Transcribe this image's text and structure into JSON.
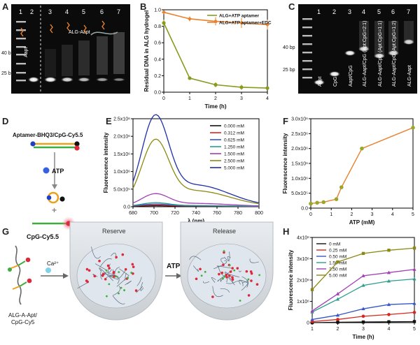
{
  "panel_A": {
    "label": "A",
    "lanes": [
      "1",
      "2",
      "3",
      "4",
      "5",
      "6",
      "7"
    ],
    "marker_40": "40 bp",
    "marker_25": "25 bp",
    "aapt_label": "Aapt",
    "alg_label": "ALG-Aapt"
  },
  "panel_C": {
    "label": "C",
    "lanes": [
      "1",
      "2",
      "3",
      "4",
      "5",
      "6",
      "7"
    ],
    "marker_40": "40 bp",
    "marker_25": "25 bp",
    "lane_labels": [
      "Aapt",
      "CpG",
      "Aapt/CpG",
      "ALG-Aapt/CpG (Apt:CpG=2:1)",
      "ALG-Aapt/CpG (Apt:CpG=1:1)",
      "ALG-Aapt/CpG (Apt:CpG=1:2)",
      "ALG-Aapt"
    ]
  },
  "panel_D": {
    "label": "D",
    "top_text": "Aptamer-BHQ3/CpG-Cy5.5",
    "atp_text": "ATP",
    "plus_text": "+",
    "bottom_text": "CpG-Cy5.5"
  },
  "panel_G": {
    "label": "G",
    "mol_text_1": "ALG-A-Apt/",
    "mol_text_2": "CpG-Cy5",
    "ca_text": "Ca²⁺",
    "reserve_text": "Reserve",
    "atp_text": "ATP",
    "release_text": "Release"
  },
  "chart_data": [
    {
      "id": "B",
      "type": "line",
      "xlabel": "Time (h)",
      "ylabel": "Residual DNA in ALG hydrogel",
      "xlim": [
        0,
        4
      ],
      "ylim": [
        0,
        1.0
      ],
      "xticks": [
        "0",
        "1",
        "2",
        "3",
        "4"
      ],
      "yticks": [
        "0.0",
        "0.2",
        "0.4",
        "0.6",
        "0.8",
        "1.0"
      ],
      "legend_position": "top-right",
      "series": [
        {
          "name": "ALG+ATP aptamer",
          "color": "#8a9a1c",
          "x": [
            0,
            1,
            2,
            3,
            4
          ],
          "values": [
            0.84,
            0.17,
            0.09,
            0.06,
            0.05
          ],
          "err": [
            0.04,
            0.01,
            0.03,
            0.03,
            0.02
          ]
        },
        {
          "name": "ALG+ATP aptamer+EDC",
          "color": "#e8822e",
          "x": [
            0,
            1,
            2,
            3,
            4
          ],
          "values": [
            0.97,
            0.89,
            0.86,
            0.84,
            0.82
          ],
          "err": [
            0.02,
            0.03,
            0.05,
            0.06,
            0.06
          ]
        }
      ]
    },
    {
      "id": "E",
      "type": "line",
      "xlabel": "λ (nm)",
      "ylabel": "Fluorescence intensity",
      "xlim": [
        680,
        800
      ],
      "ylim": [
        0,
        2500000.0
      ],
      "xticks": [
        "680",
        "700",
        "720",
        "740",
        "760",
        "780",
        "800"
      ],
      "yticks": [
        "0.0",
        "5.0x10⁵",
        "1.0x10⁶",
        "1.5x10⁶",
        "2.0x10⁶",
        "2.5x10⁶"
      ],
      "legend_position": "top-right",
      "series": [
        {
          "name": "0.000 mM",
          "color": "#111111",
          "peak": 20000.0
        },
        {
          "name": "0.312 mM",
          "color": "#d9261c",
          "peak": 40000.0
        },
        {
          "name": "0.625 mM",
          "color": "#3557c9",
          "peak": 70000.0
        },
        {
          "name": "1.250 mM",
          "color": "#2a9e8e",
          "peak": 110000.0
        },
        {
          "name": "1.500 mM",
          "color": "#a23fb5",
          "peak": 380000.0
        },
        {
          "name": "2.500 mM",
          "color": "#8a8a12",
          "peak": 2000000.0
        },
        {
          "name": "5.000 mM",
          "color": "#1e2fa8",
          "peak": 2730000.0
        }
      ]
    },
    {
      "id": "F",
      "type": "line",
      "xlabel": "ATP (mM)",
      "ylabel": "Fluorescence intensity",
      "xlim": [
        0,
        5
      ],
      "ylim": [
        0,
        3000000.0
      ],
      "xticks": [
        "0",
        "1",
        "2",
        "3",
        "4",
        "5"
      ],
      "yticks": [
        "0.0",
        "5.0x10⁵",
        "1.0x10⁶",
        "1.5x10⁶",
        "2.0x10⁶",
        "2.5x10⁶",
        "3.0x10⁶"
      ],
      "series": [
        {
          "name": "",
          "color": "#e8822e",
          "marker_color": "#9aa82a",
          "x": [
            0,
            0.312,
            0.625,
            1.25,
            1.5,
            2.5,
            5
          ],
          "values": [
            150000.0,
            180000.0,
            200000.0,
            300000.0,
            700000.0,
            2000000.0,
            2700000.0
          ]
        }
      ]
    },
    {
      "id": "H",
      "type": "line",
      "xlabel": "Time (h)",
      "ylabel": "Fluorescence intensity",
      "xlim": [
        1,
        5
      ],
      "ylim": [
        0,
        4000000.0
      ],
      "xticks": [
        "1",
        "2",
        "3",
        "4",
        "5"
      ],
      "yticks": [
        "0",
        "1x10⁶",
        "2x10⁶",
        "3x10⁶",
        "4x10⁶"
      ],
      "legend_position": "top-left",
      "series": [
        {
          "name": "0 mM",
          "color": "#111111",
          "x": [
            1,
            2,
            3,
            4,
            5
          ],
          "values": [
            0.0,
            20000.0,
            30000.0,
            40000.0,
            50000.0
          ]
        },
        {
          "name": "0.25 mM",
          "color": "#d9261c",
          "x": [
            1,
            2,
            3,
            4,
            5
          ],
          "values": [
            50000.0,
            150000.0,
            300000.0,
            380000.0,
            480000.0
          ]
        },
        {
          "name": "0.50 mM",
          "color": "#3557c9",
          "x": [
            1,
            2,
            3,
            4,
            5
          ],
          "values": [
            150000.0,
            350000.0,
            650000.0,
            850000.0,
            900000.0
          ]
        },
        {
          "name": "1.50 mM",
          "color": "#2a9e8e",
          "x": [
            1,
            2,
            3,
            4,
            5
          ],
          "values": [
            500000.0,
            1100000.0,
            1750000.0,
            1950000.0,
            2050000.0
          ]
        },
        {
          "name": "2.50 mM",
          "color": "#a23fb5",
          "x": [
            1,
            2,
            3,
            4,
            5
          ],
          "values": [
            550000.0,
            1350000.0,
            2200000.0,
            2350000.0,
            2500000.0
          ]
        },
        {
          "name": "5.00 mM",
          "color": "#8a8a12",
          "x": [
            1,
            2,
            3,
            4,
            5
          ],
          "values": [
            1550000.0,
            2850000.0,
            3250000.0,
            3400000.0,
            3500000.0
          ]
        }
      ]
    }
  ]
}
